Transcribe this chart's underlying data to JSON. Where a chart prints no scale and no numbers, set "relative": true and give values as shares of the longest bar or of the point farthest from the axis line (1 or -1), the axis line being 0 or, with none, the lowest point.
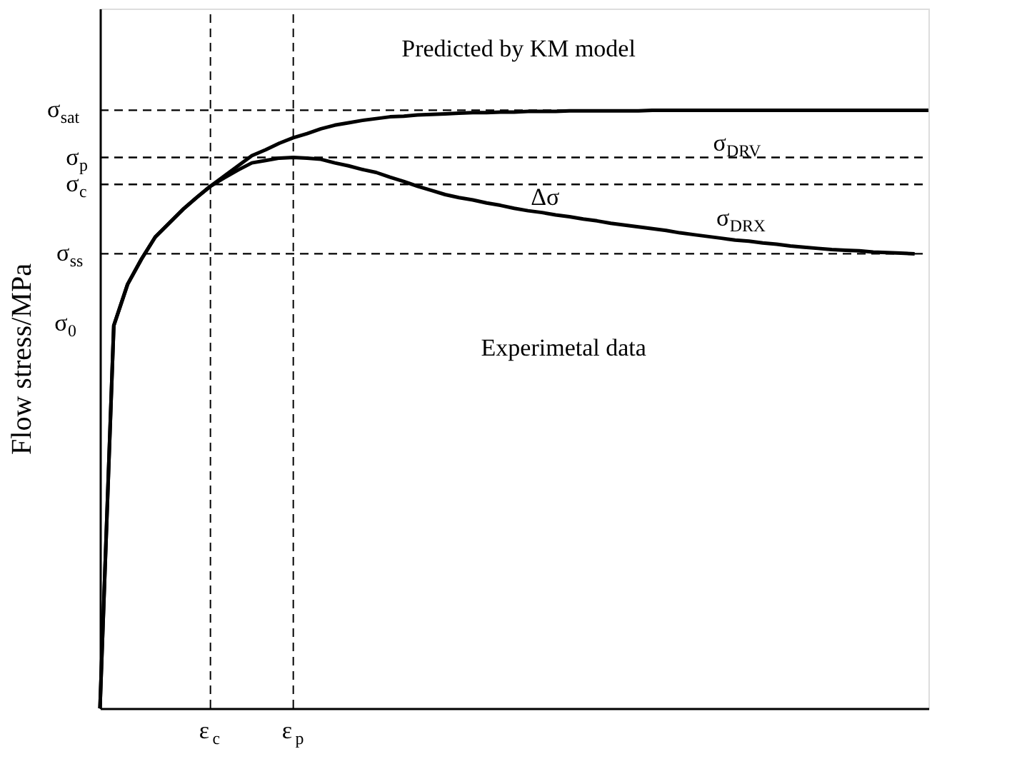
{
  "chart_data": {
    "type": "line",
    "relative": true,
    "ylabel": "Flow stress/MPa",
    "tick_labels": "x",
    "grid": false,
    "marker": "none",
    "line_style": "solid",
    "categories": [
      null,
      null,
      null,
      null,
      null,
      null,
      null,
      null,
      "ε$_{c}$",
      null,
      null,
      null,
      null,
      null,
      "ε$_{p}$",
      null,
      null,
      null,
      null,
      null,
      null,
      null,
      null,
      null,
      null,
      null,
      null,
      null,
      null,
      null,
      null,
      null,
      null,
      null,
      null,
      null,
      null,
      null,
      null,
      null,
      null,
      null,
      null,
      null,
      null,
      null,
      null,
      null,
      null,
      null,
      null,
      null,
      null,
      null,
      null,
      null,
      null,
      null,
      null,
      null,
      null
    ],
    "series": [
      {
        "color": "#000000",
        "values": [
          0,
          0.64,
          0.709,
          0.751,
          0.788,
          0.811,
          0.834,
          0.854,
          0.873,
          0.89,
          0.907,
          0.924,
          0.934,
          0.945,
          0.954,
          0.961,
          0.969,
          0.975,
          0.979,
          0.983,
          0.986,
          0.989,
          0.99,
          0.992,
          0.993,
          0.994,
          0.995,
          0.996,
          0.996,
          0.997,
          0.997,
          0.998,
          0.998,
          0.998,
          0.999,
          0.999,
          0.999,
          0.999,
          0.999,
          0.999,
          1,
          1,
          1,
          1,
          1,
          1,
          1,
          1,
          1,
          1,
          1,
          1,
          1,
          1,
          1,
          1,
          1,
          1,
          1,
          1,
          1
        ]
      },
      {
        "color": "#000000",
        "values": [
          0,
          0.64,
          0.709,
          0.751,
          0.788,
          0.811,
          0.834,
          0.854,
          0.873,
          0.887,
          0.9,
          0.912,
          0.916,
          0.92,
          0.921,
          0.92,
          0.918,
          0.912,
          0.907,
          0.901,
          0.896,
          0.888,
          0.881,
          0.873,
          0.866,
          0.859,
          0.854,
          0.85,
          0.845,
          0.841,
          0.836,
          0.832,
          0.829,
          0.825,
          0.822,
          0.818,
          0.815,
          0.811,
          0.808,
          0.805,
          0.802,
          0.799,
          0.795,
          0.792,
          0.789,
          0.786,
          0.783,
          0.781,
          0.778,
          0.776,
          0.773,
          0.771,
          0.769,
          0.767,
          0.766,
          0.765,
          0.763,
          0.762,
          0.761,
          0.76,
          null
        ]
      }
    ],
    "ref_lines": [
      {
        "axis": "y",
        "value": 1,
        "label": "σ$_{sat}$",
        "line_style": "dashed",
        "color": "#000000"
      },
      {
        "axis": "y",
        "value": 0.921,
        "label": "σ$_{p}$",
        "line_style": "dashed",
        "color": "#000000"
      },
      {
        "axis": "y",
        "value": 0.876,
        "label": "σ$_{c}$",
        "line_style": "dashed",
        "color": "#000000"
      },
      {
        "axis": "y",
        "value": 0.76,
        "label": "σ$_{ss}$",
        "line_style": "dashed",
        "color": "#000000"
      },
      {
        "axis": "x",
        "value": "ε$_{c}$",
        "line_style": "dashed",
        "color": "#000000"
      },
      {
        "axis": "x",
        "value": "ε$_{p}$",
        "line_style": "dashed",
        "color": "#000000"
      }
    ],
    "annotations": [
      "Predicted by KM model",
      "Experimetal data",
      "σ$_{DRV}$",
      "σ$_{DRX}$",
      "Δσ",
      "σ$_{0}$"
    ]
  }
}
